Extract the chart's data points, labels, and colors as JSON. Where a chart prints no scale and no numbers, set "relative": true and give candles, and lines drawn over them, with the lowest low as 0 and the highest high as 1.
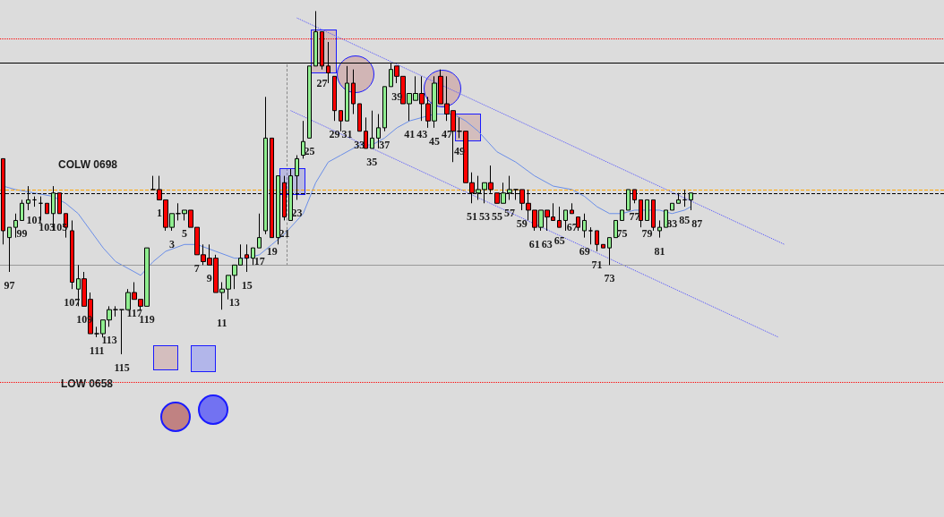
{
  "chart_data": {
    "type": "candlestick",
    "relative": true,
    "categories": [
      null,
      "97",
      null,
      "99",
      null,
      "101",
      null,
      "103",
      null,
      "105",
      null,
      "107",
      null,
      "109",
      null,
      "111",
      null,
      "113",
      null,
      "115",
      null,
      "117",
      null,
      "119",
      null,
      "1",
      null,
      "3",
      null,
      "5",
      null,
      "7",
      null,
      "9",
      null,
      "11",
      null,
      "13",
      null,
      "15",
      null,
      "17",
      null,
      "19",
      null,
      "21",
      null,
      "23",
      null,
      "25",
      null,
      "27",
      null,
      "29",
      null,
      "31",
      null,
      "33",
      null,
      "35",
      null,
      "37",
      null,
      "39",
      null,
      "41",
      null,
      "43",
      null,
      "45",
      null,
      "47",
      null,
      "49",
      null,
      "51",
      null,
      "53",
      null,
      "55",
      null,
      "57",
      null,
      "59",
      null,
      "61",
      null,
      "63",
      null,
      "65",
      null,
      "67",
      null,
      "69",
      null,
      "71",
      null,
      "73",
      null,
      "75",
      null,
      "77",
      null,
      "79",
      null,
      "81",
      null,
      "83",
      null,
      "85",
      null,
      "87",
      null,
      null,
      null,
      null,
      null,
      null,
      null,
      null,
      null,
      null,
      null,
      null,
      null,
      null,
      null,
      null,
      null,
      null,
      null,
      null,
      null,
      null,
      null,
      null,
      null,
      null,
      null,
      null,
      null,
      null,
      null,
      null,
      null,
      null,
      null,
      null,
      null,
      null,
      null
    ],
    "colors": [
      "#ff0000",
      "#90ee90",
      "#90ee90",
      "#90ee90",
      "#90ee90",
      "#000000",
      "#000000",
      "#ff0000",
      "#90ee90",
      "#ff0000",
      "#ff0000",
      "#ff0000",
      "#90ee90",
      "#ff0000",
      "#ff0000",
      "#000000",
      "#90ee90",
      "#90ee90",
      "#000000",
      "#000000",
      "#90ee90",
      "#ff0000",
      "#ff0000",
      "#90ee90",
      "#000000",
      "#ff0000",
      "#ff0000",
      "#90ee90",
      "#000000",
      "#90ee90",
      "#ff0000",
      "#ff0000",
      "#ff0000",
      "#ff0000",
      "#ff0000",
      "#90ee90",
      "#90ee90",
      "#90ee90",
      "#90ee90",
      "#ff0000",
      "#90ee90",
      "#90ee90",
      "#90ee90",
      "#ff0000",
      "#90ee90",
      "#ff0000",
      "#90ee90",
      "#90ee90",
      "#90ee90",
      "#90ee90",
      "#90ee90",
      "#ff0000",
      "#ff0000",
      "#ff0000",
      "#ff0000",
      "#90ee90",
      "#ff0000",
      "#ff0000",
      "#ff0000",
      "#90ee90",
      "#90ee90",
      "#90ee90",
      "#90ee90",
      "#ff0000",
      "#ff0000",
      "#90ee90",
      "#90ee90",
      "#ff0000",
      "#ff0000",
      "#90ee90",
      "#ff0000",
      "#ff0000",
      "#ff0000",
      "#000000",
      "#ff0000",
      "#ff0000",
      "#90ee90",
      "#90ee90",
      "#ff0000",
      "#ff0000",
      "#90ee90",
      "#90ee90",
      "#000000",
      "#ff0000",
      "#ff0000",
      "#ff0000",
      "#90ee90",
      "#ff0000",
      "#ff0000",
      "#ff0000",
      "#90ee90",
      "#ff0000",
      "#ff0000",
      "#90ee90",
      "#000000",
      "#ff0000",
      "#ff0000",
      "#90ee90",
      "#90ee90",
      "#90ee90",
      "#90ee90",
      "#ff0000",
      "#ff0000",
      "#90ee90",
      "#ff0000",
      "#90ee90",
      "#90ee90",
      "#90ee90",
      "#90ee90",
      "#000000",
      "#90ee90",
      null,
      null,
      null,
      null,
      null,
      null,
      null,
      null,
      null,
      null,
      null,
      null,
      null,
      null,
      null,
      null,
      null,
      null,
      null,
      null,
      null,
      null,
      null,
      null,
      null,
      null,
      null,
      null,
      null,
      null,
      null,
      null,
      null,
      null,
      null,
      null,
      null,
      null,
      null,
      null
    ],
    "ohlc": [
      [
        0.57,
        0.57,
        0.32,
        0.36
      ],
      [
        0.34,
        0.37,
        0.24,
        0.37
      ],
      [
        0.37,
        0.41,
        0.34,
        0.39
      ],
      [
        0.39,
        0.45,
        0.39,
        0.44
      ],
      [
        0.44,
        0.49,
        0.42,
        0.45
      ],
      [
        0.45,
        0.46,
        0.43,
        0.45
      ],
      [
        0.44,
        0.46,
        0.39,
        0.44
      ],
      [
        0.44,
        0.44,
        0.41,
        0.41
      ],
      [
        0.41,
        0.49,
        0.36,
        0.47
      ],
      [
        0.47,
        0.47,
        0.41,
        0.41
      ],
      [
        0.41,
        0.41,
        0.34,
        0.37
      ],
      [
        0.36,
        0.39,
        0.19,
        0.21
      ],
      [
        0.19,
        0.26,
        0.14,
        0.22
      ],
      [
        0.22,
        0.24,
        0.14,
        0.14
      ],
      [
        0.16,
        0.18,
        0.06,
        0.06
      ],
      [
        0.06,
        0.08,
        0.05,
        0.06
      ],
      [
        0.06,
        0.1,
        0.05,
        0.1
      ],
      [
        0.1,
        0.14,
        0.08,
        0.13
      ],
      [
        0.13,
        0.14,
        0.11,
        0.13
      ],
      [
        0.13,
        0.13,
        0,
        0.13
      ],
      [
        0.13,
        0.19,
        0.13,
        0.18
      ],
      [
        0.18,
        0.21,
        0.16,
        0.16
      ],
      [
        0.16,
        0.16,
        0.13,
        0.14
      ],
      [
        0.14,
        0.31,
        0.14,
        0.31
      ],
      [
        0.48,
        0.52,
        0.48,
        0.48
      ],
      [
        0.48,
        0.52,
        0.45,
        0.45
      ],
      [
        0.45,
        0.45,
        0.36,
        0.37
      ],
      [
        0.37,
        0.41,
        0.36,
        0.41
      ],
      [
        0.41,
        0.44,
        0.39,
        0.41
      ],
      [
        0.41,
        0.42,
        0.39,
        0.42
      ],
      [
        0.42,
        0.42,
        0.37,
        0.37
      ],
      [
        0.37,
        0.37,
        0.29,
        0.29
      ],
      [
        0.29,
        0.32,
        0.26,
        0.27
      ],
      [
        0.28,
        0.32,
        0.26,
        0.26
      ],
      [
        0.28,
        0.29,
        0.18,
        0.18
      ],
      [
        0.18,
        0.21,
        0.13,
        0.19
      ],
      [
        0.19,
        0.23,
        0.16,
        0.23
      ],
      [
        0.23,
        0.26,
        0.19,
        0.26
      ],
      [
        0.26,
        0.32,
        0.26,
        0.28
      ],
      [
        0.29,
        0.32,
        0.24,
        0.28
      ],
      [
        0.28,
        0.31,
        0.26,
        0.31
      ],
      [
        0.31,
        0.41,
        0.31,
        0.34
      ],
      [
        0.36,
        0.75,
        0.35,
        0.63
      ],
      [
        0.63,
        0.63,
        0.34,
        0.34
      ],
      [
        0.34,
        0.52,
        0.32,
        0.52
      ],
      [
        0.5,
        0.52,
        0.39,
        0.4
      ],
      [
        0.39,
        0.54,
        0.39,
        0.52
      ],
      [
        0.52,
        0.58,
        0.45,
        0.57
      ],
      [
        0.58,
        0.68,
        0.57,
        0.62
      ],
      [
        0.63,
        0.84,
        0.63,
        0.84
      ],
      [
        0.84,
        1,
        0.84,
        0.94
      ],
      [
        0.94,
        0.94,
        0.83,
        0.84
      ],
      [
        0.84,
        0.91,
        0.79,
        0.82
      ],
      [
        0.81,
        0.81,
        0.68,
        0.71
      ],
      [
        0.71,
        0.71,
        0.65,
        0.68
      ],
      [
        0.68,
        0.84,
        0.68,
        0.79
      ],
      [
        0.79,
        0.83,
        0.7,
        0.73
      ],
      [
        0.73,
        0.73,
        0.65,
        0.65
      ],
      [
        0.65,
        0.69,
        0.6,
        0.6
      ],
      [
        0.6,
        0.71,
        0.6,
        0.63
      ],
      [
        0.63,
        0.7,
        0.6,
        0.66
      ],
      [
        0.66,
        0.78,
        0.65,
        0.78
      ],
      [
        0.78,
        0.85,
        0.78,
        0.83
      ],
      [
        0.84,
        0.84,
        0.79,
        0.81
      ],
      [
        0.81,
        0.81,
        0.73,
        0.73
      ],
      [
        0.73,
        0.76,
        0.68,
        0.76
      ],
      [
        0.74,
        0.81,
        0.74,
        0.76
      ],
      [
        0.76,
        0.81,
        0.68,
        0.73
      ],
      [
        0.73,
        0.75,
        0.66,
        0.68
      ],
      [
        0.68,
        0.81,
        0.66,
        0.79
      ],
      [
        0.81,
        0.83,
        0.73,
        0.73
      ],
      [
        0.73,
        0.81,
        0.68,
        0.7
      ],
      [
        0.71,
        0.71,
        0.56,
        0.65
      ],
      [
        0.65,
        0.69,
        0.63,
        0.65
      ],
      [
        0.65,
        0.65,
        0.5,
        0.5
      ],
      [
        0.5,
        0.53,
        0.44,
        0.47
      ],
      [
        0.47,
        0.52,
        0.45,
        0.48
      ],
      [
        0.48,
        0.5,
        0.44,
        0.5
      ],
      [
        0.5,
        0.55,
        0.47,
        0.48
      ],
      [
        0.47,
        0.47,
        0.44,
        0.44
      ],
      [
        0.44,
        0.5,
        0.44,
        0.47
      ],
      [
        0.47,
        0.52,
        0.45,
        0.48
      ],
      [
        0.48,
        0.48,
        0.45,
        0.48
      ],
      [
        0.48,
        0.48,
        0.42,
        0.44
      ],
      [
        0.44,
        0.48,
        0.39,
        0.42
      ],
      [
        0.42,
        0.42,
        0.36,
        0.37
      ],
      [
        0.37,
        0.42,
        0.36,
        0.42
      ],
      [
        0.42,
        0.42,
        0.36,
        0.4
      ],
      [
        0.4,
        0.44,
        0.39,
        0.39
      ],
      [
        0.39,
        0.43,
        0.37,
        0.37
      ],
      [
        0.39,
        0.42,
        0.36,
        0.42
      ],
      [
        0.42,
        0.44,
        0.41,
        0.41
      ],
      [
        0.4,
        0.4,
        0.36,
        0.37
      ],
      [
        0.36,
        0.41,
        0.34,
        0.39
      ],
      [
        0.36,
        0.37,
        0.32,
        0.36
      ],
      [
        0.36,
        0.36,
        0.3,
        0.32
      ],
      [
        0.32,
        0.32,
        0.31,
        0.31
      ],
      [
        0.31,
        0.34,
        0.26,
        0.34
      ],
      [
        0.34,
        0.39,
        0.34,
        0.39
      ],
      [
        0.39,
        0.42,
        0.39,
        0.42
      ],
      [
        0.42,
        0.48,
        0.42,
        0.48
      ],
      [
        0.48,
        0.48,
        0.44,
        0.45
      ],
      [
        0.45,
        0.45,
        0.37,
        0.39
      ],
      [
        0.39,
        0.45,
        0.39,
        0.45
      ],
      [
        0.45,
        0.45,
        0.36,
        0.37
      ],
      [
        0.36,
        0.39,
        0.34,
        0.37
      ],
      [
        0.37,
        0.42,
        0.37,
        0.42
      ],
      [
        0.42,
        0.44,
        0.42,
        0.44
      ],
      [
        0.44,
        0.47,
        0.44,
        0.45
      ],
      [
        0.45,
        0.48,
        0.43,
        0.45
      ],
      [
        0.45,
        0.47,
        0.42,
        0.47
      ],
      null,
      null,
      null,
      null,
      null,
      null,
      null,
      null,
      null,
      null,
      null,
      null,
      null,
      null,
      null,
      null,
      null,
      null,
      null,
      null,
      null,
      null,
      null,
      null,
      null,
      null,
      null,
      null,
      null,
      null,
      null,
      null,
      null,
      null,
      null,
      null,
      null,
      null,
      null,
      null
    ],
    "series": [
      {
        "type": "line",
        "color": "#6a8ee8",
        "values": [
          0.49,
          null,
          0.48,
          null,
          null,
          0.47,
          null,
          null,
          0.46,
          null,
          0.44,
          null,
          0.41,
          null,
          0.36,
          null,
          0.31,
          null,
          0.27,
          null,
          0.25,
          null,
          0.23,
          null,
          0.27,
          null,
          0.3,
          null,
          null,
          0.32,
          null,
          0.32,
          null,
          null,
          0.3,
          null,
          null,
          0.28,
          null,
          0.28,
          null,
          0.29,
          null,
          0.32,
          null,
          0.35,
          null,
          null,
          0.41,
          null,
          0.5,
          null,
          0.56,
          null,
          0.58,
          null,
          null,
          0.61,
          null,
          0.61,
          null,
          0.63,
          null,
          0.66,
          null,
          0.68,
          null,
          0.69,
          null,
          0.7,
          null,
          null,
          0.7,
          null,
          0.68,
          null,
          0.65,
          null,
          null,
          0.59,
          null,
          null,
          0.56,
          null,
          null,
          0.52,
          null,
          null,
          0.49,
          null,
          null,
          0.48,
          null,
          0.46,
          null,
          0.43,
          null,
          0.41,
          null,
          0.41,
          null,
          0.42,
          null,
          0.42,
          null,
          0.42,
          null,
          0.41,
          null,
          0.42,
          0.43,
          null,
          null,
          null,
          null,
          null,
          null,
          null,
          null,
          null,
          null,
          null,
          null,
          null,
          null,
          null,
          null,
          null,
          null,
          null,
          null,
          null,
          null,
          null,
          null,
          null,
          null,
          null,
          null,
          null,
          null,
          null,
          null,
          null,
          null,
          null,
          null,
          null,
          null,
          null,
          null
        ]
      },
      {
        "type": "line",
        "color": "#5050ff",
        "line_style": "dotted",
        "values": [
          null,
          null,
          null,
          null,
          null,
          null,
          null,
          null,
          null,
          null,
          null,
          null,
          null,
          null,
          null,
          null,
          null,
          null,
          null,
          null,
          null,
          null,
          null,
          null,
          null,
          null,
          null,
          null,
          null,
          null,
          null,
          null,
          null,
          null,
          null,
          null,
          null,
          null,
          null,
          null,
          null,
          null,
          null,
          null,
          null,
          null,
          null,
          0.98,
          null,
          null,
          null,
          null,
          null,
          null,
          null,
          null,
          null,
          null,
          null,
          null,
          null,
          null,
          null,
          null,
          null,
          null,
          null,
          null,
          null,
          null,
          null,
          null,
          null,
          null,
          null,
          null,
          null,
          null,
          null,
          null,
          null,
          null,
          null,
          null,
          null,
          null,
          null,
          null,
          null,
          null,
          null,
          null,
          null,
          null,
          null,
          null,
          null,
          null,
          null,
          null,
          null,
          null,
          null,
          null,
          null,
          null,
          null,
          null,
          null,
          null,
          null,
          null,
          null,
          null,
          null,
          null,
          null,
          null,
          null,
          null,
          null,
          null,
          null,
          null,
          null,
          0.32,
          null,
          null,
          null,
          null,
          null,
          null,
          null,
          null,
          null,
          null,
          null,
          null,
          null,
          null,
          null,
          null,
          null,
          null,
          null,
          null,
          null,
          null,
          null,
          null,
          null
        ]
      },
      {
        "type": "line",
        "color": "#5050ff",
        "line_style": "dotted",
        "values": [
          null,
          null,
          null,
          null,
          null,
          null,
          null,
          null,
          null,
          null,
          null,
          null,
          null,
          null,
          null,
          null,
          null,
          null,
          null,
          null,
          null,
          null,
          null,
          null,
          null,
          null,
          null,
          null,
          null,
          null,
          null,
          null,
          null,
          null,
          null,
          null,
          null,
          null,
          null,
          null,
          null,
          null,
          null,
          null,
          null,
          null,
          0.71,
          null,
          null,
          null,
          null,
          null,
          null,
          null,
          null,
          null,
          null,
          null,
          null,
          null,
          null,
          null,
          null,
          null,
          null,
          null,
          null,
          null,
          null,
          null,
          null,
          null,
          null,
          null,
          null,
          null,
          null,
          null,
          null,
          null,
          null,
          null,
          null,
          null,
          null,
          null,
          null,
          null,
          null,
          null,
          null,
          null,
          null,
          null,
          null,
          null,
          null,
          null,
          null,
          null,
          null,
          null,
          null,
          null,
          null,
          null,
          null,
          null,
          null,
          null,
          null,
          null,
          null,
          null,
          null,
          null,
          null,
          null,
          null,
          null,
          null,
          null,
          null,
          null,
          0.05,
          null,
          null,
          null,
          null,
          null,
          null,
          null,
          null,
          null,
          null,
          null,
          null,
          null,
          null,
          null,
          null,
          null,
          null,
          null,
          null,
          null,
          null,
          null,
          null,
          null,
          null
        ]
      }
    ],
    "ref_lines": [
      {
        "axis": "y",
        "value": 0.85,
        "color": "#000000",
        "line_style": "solid"
      },
      {
        "axis": "y",
        "value": 0.48,
        "color": "#ffa500",
        "line_style": "dashed",
        "label": "COLW 0698"
      },
      {
        "axis": "y",
        "value": 0.47,
        "color": "#000000",
        "line_style": "dashed"
      },
      {
        "axis": "y",
        "value": 0.26,
        "color": "#999999",
        "line_style": "solid"
      },
      {
        "axis": "y",
        "value": 0.92,
        "color": "#ff0000",
        "line_style": "dotted"
      },
      {
        "axis": "y",
        "value": -0.08,
        "color": "#ff0000",
        "line_style": "dotted",
        "label": "LOW 0658"
      }
    ]
  }
}
